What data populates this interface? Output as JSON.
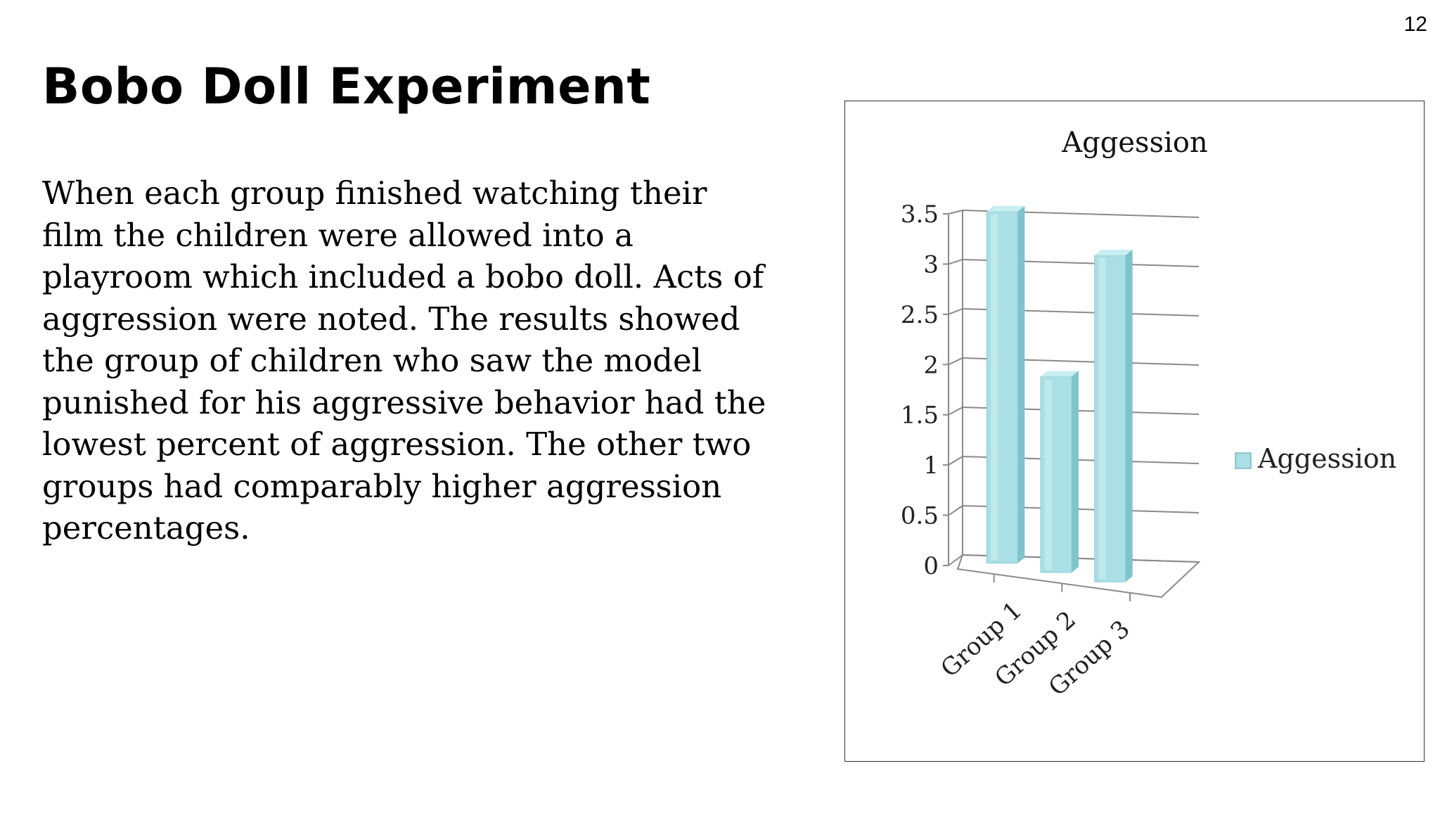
{
  "page_number": "12",
  "title": "Bobo Doll Experiment",
  "body_lines": [
    "When each group finished watching their",
    "film the children were allowed into a",
    "playroom which included a bobo doll.  Acts of",
    "aggression were noted.  The results showed",
    "the group of children who saw the model",
    "punished for his aggressive behavior had the",
    "lowest percent of aggression.  The other two",
    "groups had comparably higher aggression",
    "percentages."
  ],
  "chart_data": {
    "type": "bar",
    "title": "Aggession",
    "categories": [
      "Group 1",
      "Group 2",
      "Group 3"
    ],
    "series": [
      {
        "name": "Aggession",
        "values": [
          3.5,
          1.95,
          3.25
        ]
      }
    ],
    "ylim": [
      0,
      3.5
    ],
    "yticks": [
      "0",
      "0.5",
      "1",
      "1.5",
      "2",
      "2.5",
      "3",
      "3.5"
    ],
    "grid": true,
    "legend": "right",
    "colors": {
      "bar": "#a9dfe5",
      "bar_dark": "#7fc3cb",
      "bar_top": "#c8eef2",
      "grid": "#8a8a8a"
    }
  }
}
